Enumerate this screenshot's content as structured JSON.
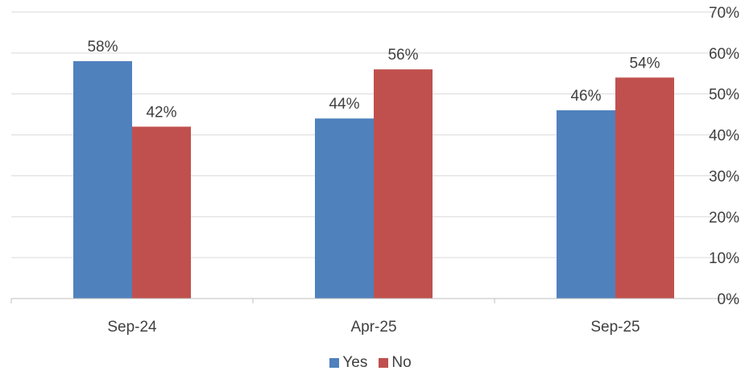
{
  "chart_data": {
    "type": "bar",
    "categories": [
      "Sep-24",
      "Apr-25",
      "Sep-25"
    ],
    "series": [
      {
        "name": "Yes",
        "color": "#4F81BD",
        "values": [
          58,
          44,
          46
        ],
        "labels": [
          "58%",
          "44%",
          "46%"
        ]
      },
      {
        "name": "No",
        "color": "#C0504D",
        "values": [
          42,
          56,
          54
        ],
        "labels": [
          "42%",
          "56%",
          "54%"
        ]
      }
    ],
    "ylim": [
      0,
      70
    ],
    "yticks": [
      0,
      10,
      20,
      30,
      40,
      50,
      60,
      70
    ],
    "ytick_labels": [
      "0%",
      "10%",
      "20%",
      "30%",
      "40%",
      "50%",
      "60%",
      "70%"
    ],
    "y_axis_side": "right",
    "grid": true,
    "legend_position": "bottom",
    "title": "",
    "xlabel": "",
    "ylabel": ""
  }
}
